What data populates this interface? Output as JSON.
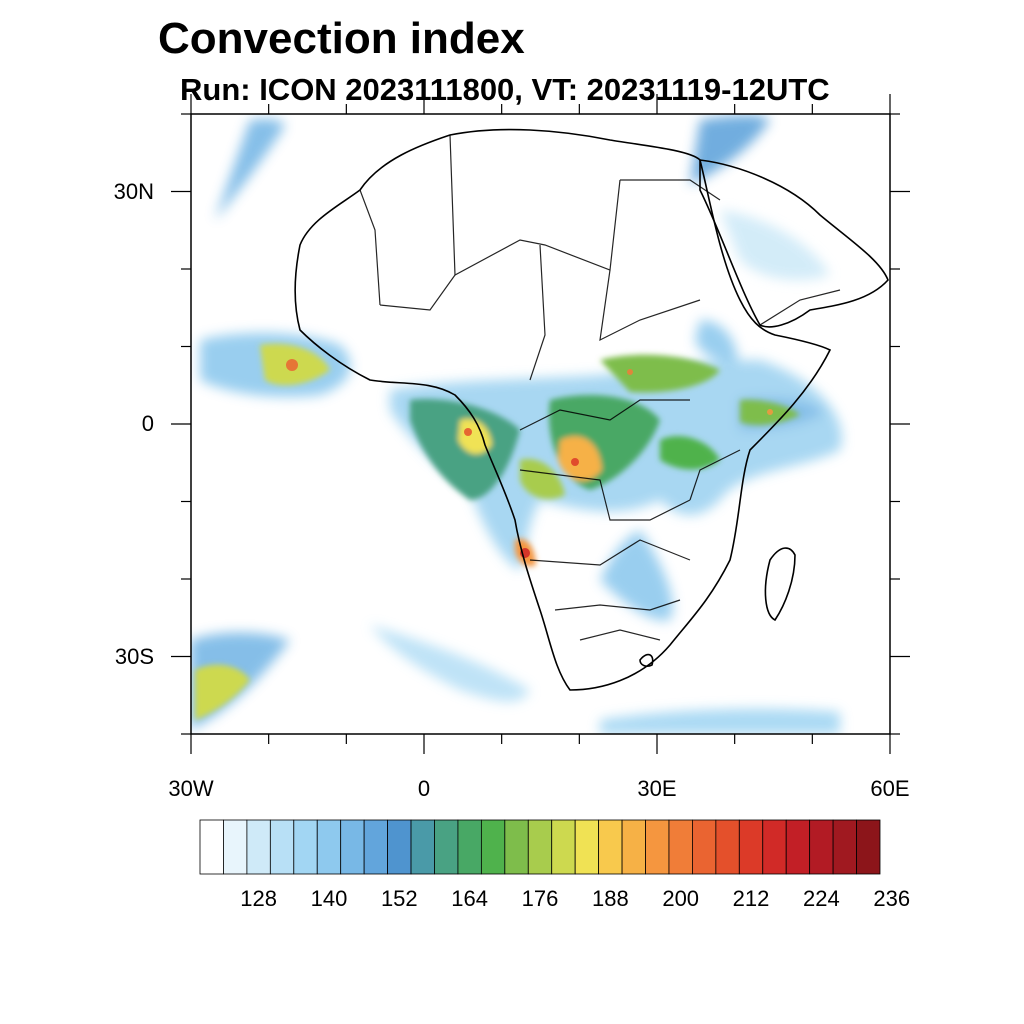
{
  "title": "Convection index",
  "subtitle": "Run: ICON 2023111800,  VT: 20231119-12UTC",
  "map": {
    "lon_range": [
      -30,
      60
    ],
    "lat_range": [
      -40,
      40
    ],
    "lat_ticks": [
      {
        "value": 30,
        "label": "30N"
      },
      {
        "value": 0,
        "label": "0"
      },
      {
        "value": -30,
        "label": "30S"
      }
    ],
    "lon_ticks": [
      {
        "value": -30,
        "label": "30W"
      },
      {
        "value": 0,
        "label": "0"
      },
      {
        "value": 30,
        "label": "30E"
      },
      {
        "value": 60,
        "label": "60E"
      }
    ],
    "coastline_color": "#000000"
  },
  "colorbar": {
    "labels": [
      "128",
      "140",
      "152",
      "164",
      "176",
      "188",
      "200",
      "212",
      "224",
      "236"
    ],
    "colors": [
      "#ffffff",
      "#e8f5fc",
      "#cfeaf8",
      "#b8e0f6",
      "#a2d6f3",
      "#8ec9ee",
      "#78b8e6",
      "#62a5dc",
      "#4f94cf",
      "#4a9aa8",
      "#49a283",
      "#48a865",
      "#4fb24c",
      "#7ebd4b",
      "#a8cc4d",
      "#cdd94f",
      "#f0e254",
      "#f8c94d",
      "#f6b146",
      "#f5963f",
      "#f07d38",
      "#ea6431",
      "#e4502b",
      "#dc3a28",
      "#d12a27",
      "#c21f26",
      "#b21b24",
      "#a01920",
      "#8c151a"
    ]
  }
}
